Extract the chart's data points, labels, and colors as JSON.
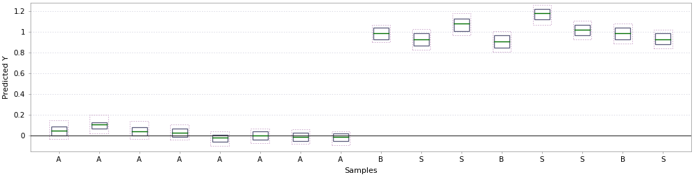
{
  "title": "",
  "xlabel": "Samples",
  "ylabel": "Predicted Y",
  "ylim": [
    -0.15,
    1.28
  ],
  "yticks": [
    0.0,
    0.2,
    0.4,
    0.6,
    0.8,
    1.0,
    1.2
  ],
  "background_color": "#ffffff",
  "hline_y": 0.0,
  "boxes": [
    {
      "x": 1,
      "label": "A",
      "q1": 0.0,
      "median": 0.045,
      "q3": 0.09,
      "whislo": -0.03,
      "whishi": 0.15
    },
    {
      "x": 2,
      "label": "A",
      "q1": 0.07,
      "median": 0.105,
      "q3": 0.13,
      "whislo": 0.02,
      "whishi": 0.2
    },
    {
      "x": 3,
      "label": "A",
      "q1": 0.0,
      "median": 0.04,
      "q3": 0.08,
      "whislo": -0.03,
      "whishi": 0.14
    },
    {
      "x": 4,
      "label": "A",
      "q1": -0.01,
      "median": 0.03,
      "q3": 0.07,
      "whislo": -0.04,
      "whishi": 0.11
    },
    {
      "x": 5,
      "label": "A",
      "q1": -0.06,
      "median": -0.02,
      "q3": 0.01,
      "whislo": -0.1,
      "whishi": 0.04
    },
    {
      "x": 6,
      "label": "A",
      "q1": -0.04,
      "median": 0.0,
      "q3": 0.04,
      "whislo": -0.07,
      "whishi": 0.07
    },
    {
      "x": 7,
      "label": "A",
      "q1": -0.05,
      "median": -0.01,
      "q3": 0.03,
      "whislo": -0.08,
      "whishi": 0.06
    },
    {
      "x": 8,
      "label": "A",
      "q1": -0.05,
      "median": -0.01,
      "q3": 0.02,
      "whislo": -0.09,
      "whishi": 0.04
    },
    {
      "x": 9,
      "label": "B",
      "q1": 0.93,
      "median": 0.99,
      "q3": 1.04,
      "whislo": 0.9,
      "whishi": 1.07
    },
    {
      "x": 10,
      "label": "S",
      "q1": 0.87,
      "median": 0.93,
      "q3": 0.99,
      "whislo": 0.83,
      "whishi": 1.03
    },
    {
      "x": 11,
      "label": "S",
      "q1": 1.01,
      "median": 1.08,
      "q3": 1.13,
      "whislo": 0.97,
      "whishi": 1.18
    },
    {
      "x": 12,
      "label": "B",
      "q1": 0.85,
      "median": 0.91,
      "q3": 0.97,
      "whislo": 0.81,
      "whishi": 1.01
    },
    {
      "x": 13,
      "label": "S",
      "q1": 1.12,
      "median": 1.18,
      "q3": 1.22,
      "whislo": 1.07,
      "whishi": 1.26
    },
    {
      "x": 14,
      "label": "S",
      "q1": 0.97,
      "median": 1.02,
      "q3": 1.07,
      "whislo": 0.93,
      "whishi": 1.11
    },
    {
      "x": 15,
      "label": "B",
      "q1": 0.93,
      "median": 0.99,
      "q3": 1.04,
      "whislo": 0.89,
      "whishi": 1.08
    },
    {
      "x": 16,
      "label": "S",
      "q1": 0.88,
      "median": 0.93,
      "q3": 0.99,
      "whislo": 0.84,
      "whishi": 1.02
    }
  ],
  "box_face_color": "#ffffff",
  "box_edge_color": "#5a5a7a",
  "median_color": "#007000",
  "outer_box_color": "#c8a0c8",
  "hline_color": "#303030",
  "grid_color": "#c8c8d8",
  "axis_label_fontsize": 8,
  "tick_fontsize": 7.5,
  "box_width": 0.38
}
